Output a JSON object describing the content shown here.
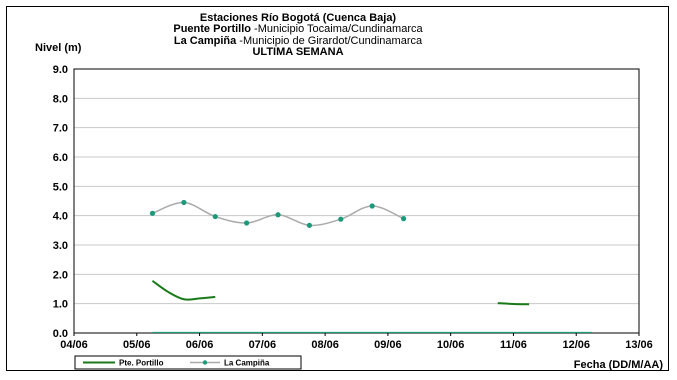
{
  "chart_data": {
    "type": "line",
    "title": {
      "line1": "Estaciones Río Bogotá (Cuenca Baja)",
      "line2_bold": "Puente Portillo",
      "line2_rest": " -Municipio Tocaima/Cundinamarca",
      "line3_bold": "La Campiña",
      "line3_rest": " -Municipio de Girardot/Cundinamarca",
      "line4": "ULTIMA SEMANA"
    },
    "ylabel": "Nivel (m)",
    "xlabel": "Fecha (DD/M/AA)",
    "ylim": [
      0,
      9
    ],
    "xlim": [
      0,
      9
    ],
    "x_ticks": [
      "04/06",
      "05/06",
      "06/06",
      "07/06",
      "08/06",
      "09/06",
      "10/06",
      "11/06",
      "12/06",
      "13/06"
    ],
    "y_ticks": [
      "0.0",
      "1.0",
      "2.0",
      "3.0",
      "4.0",
      "5.0",
      "6.0",
      "7.0",
      "8.0",
      "9.0"
    ],
    "grid": true,
    "legend_position": "bottom-left",
    "series": [
      {
        "name": "Pte. Portillo",
        "color": "#1a7a1a",
        "marker": "none",
        "segments": [
          [
            [
              1.25,
              1.78
            ],
            [
              1.5,
              1.4
            ],
            [
              1.75,
              1.15
            ],
            [
              2.0,
              1.18
            ],
            [
              2.25,
              1.23
            ]
          ],
          [
            [
              6.75,
              1.02
            ],
            [
              7.0,
              0.99
            ],
            [
              7.25,
              0.98
            ]
          ]
        ]
      },
      {
        "name": "La Campiña",
        "color": "#1a9a7a",
        "line_color": "#aaaaaa",
        "marker": "circle",
        "segments": [
          [
            [
              1.25,
              4.08
            ],
            [
              1.75,
              4.45
            ],
            [
              2.25,
              3.97
            ],
            [
              2.75,
              3.75
            ],
            [
              3.25,
              4.03
            ],
            [
              3.75,
              3.67
            ],
            [
              4.25,
              3.88
            ],
            [
              4.75,
              4.33
            ],
            [
              5.25,
              3.9
            ]
          ]
        ]
      }
    ]
  }
}
